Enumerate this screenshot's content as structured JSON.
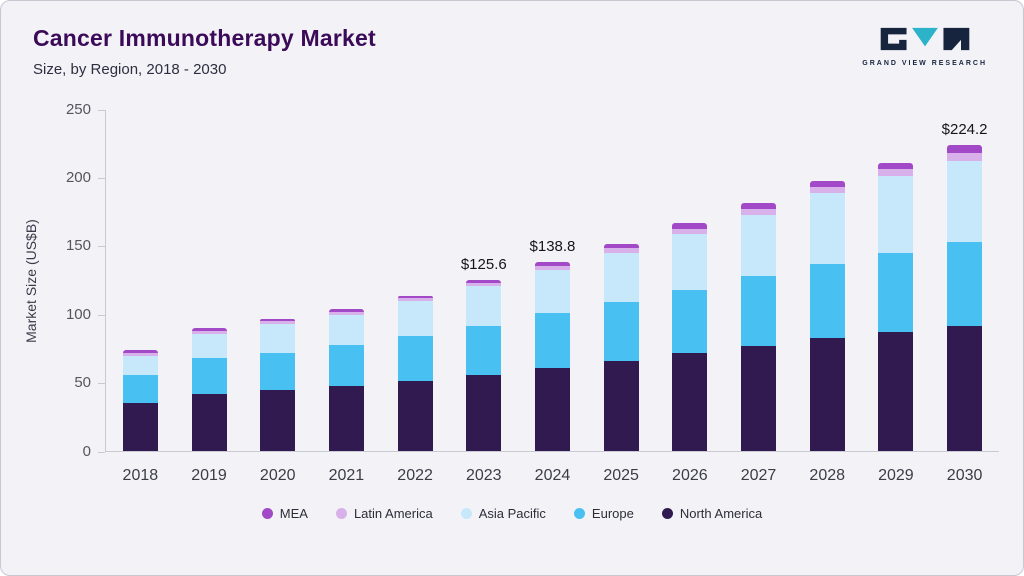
{
  "header": {
    "title": "Cancer Immunotherapy Market",
    "subtitle": "Size, by Region, 2018 - 2030",
    "logo_text": "GRAND VIEW RESEARCH"
  },
  "brand": {
    "logo_dark": "#16243d",
    "logo_teal": "#2db3c9"
  },
  "chart_data": {
    "type": "bar",
    "stacked": true,
    "title": "Cancer Immunotherapy Market Size, by Region, 2018 - 2030",
    "xlabel": "",
    "ylabel": "Market Size (US$B)",
    "ylim": [
      0,
      250
    ],
    "yticks": [
      0,
      50,
      100,
      150,
      200,
      250
    ],
    "grid": false,
    "legend_position": "bottom",
    "categories": [
      "2018",
      "2019",
      "2020",
      "2021",
      "2022",
      "2023",
      "2024",
      "2025",
      "2026",
      "2027",
      "2028",
      "2029",
      "2030"
    ],
    "series": [
      {
        "name": "North America",
        "color": "#301a4f",
        "values": [
          35,
          42,
          45,
          48,
          51,
          56,
          61,
          66,
          72,
          77,
          83,
          87,
          92
        ]
      },
      {
        "name": "Europe",
        "color": "#49c0f2",
        "values": [
          21,
          26,
          27,
          30,
          33,
          36,
          40,
          43,
          46,
          51,
          54,
          58,
          61
        ]
      },
      {
        "name": "Asia Pacific",
        "color": "#c7e8fa",
        "values": [
          14,
          18,
          21,
          22,
          26,
          29,
          32,
          36,
          41,
          45,
          52,
          57,
          60
        ]
      },
      {
        "name": "Latin America",
        "color": "#d8b0ea",
        "values": [
          2,
          2,
          2,
          2,
          2,
          2.3,
          2.9,
          3.5,
          4,
          4.5,
          4.5,
          4.5,
          5.5
        ]
      },
      {
        "name": "MEA",
        "color": "#a249c8",
        "values": [
          2,
          2,
          2,
          2,
          2,
          2.3,
          2.9,
          3.5,
          4,
          4.5,
          4.5,
          4.5,
          5.7
        ]
      }
    ],
    "totals_shown": [
      {
        "category": "2023",
        "label": "$125.6"
      },
      {
        "category": "2024",
        "label": "$138.8"
      },
      {
        "category": "2030",
        "label": "$224.2"
      }
    ],
    "legend": [
      "MEA",
      "Latin America",
      "Asia Pacific",
      "Europe",
      "North America"
    ]
  }
}
